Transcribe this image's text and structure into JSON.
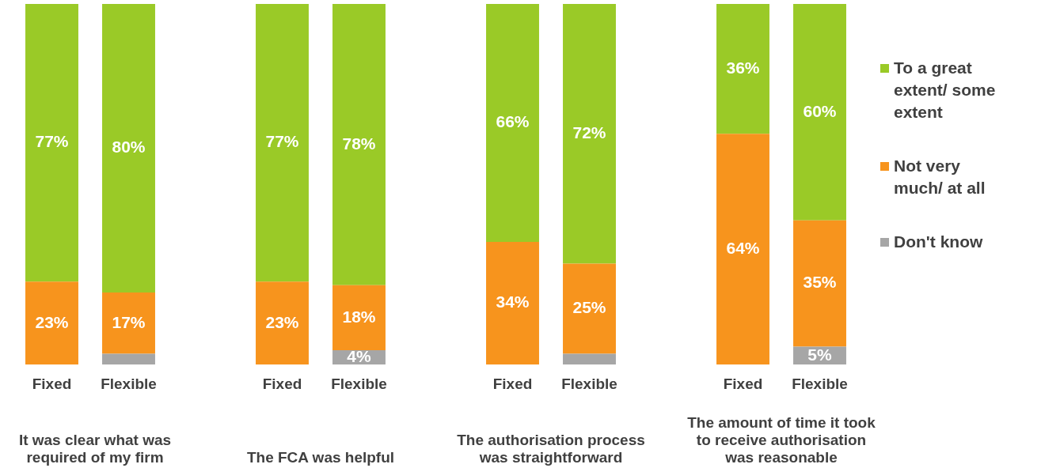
{
  "chart_data": {
    "type": "bar",
    "stacked": true,
    "categories": [
      "Fixed",
      "Flexible",
      null,
      "Fixed",
      "Flexible",
      null,
      "Fixed",
      "Flexible",
      null,
      "Fixed",
      "Flexible"
    ],
    "ylim": [
      0,
      100
    ],
    "tick_labels": "x",
    "grid": false,
    "legend": "right",
    "series": [
      {
        "name": "Don't know",
        "color": "#a6a6a6",
        "values": [
          null,
          3,
          null,
          null,
          4,
          null,
          null,
          3,
          null,
          null,
          5
        ],
        "value_labels": [
          null,
          null,
          null,
          null,
          "4%",
          null,
          null,
          null,
          null,
          null,
          "5%"
        ]
      },
      {
        "name": "Not very much/ at all",
        "color": "#f7941d",
        "values": [
          23,
          17,
          null,
          23,
          18,
          null,
          34,
          25,
          null,
          64,
          35
        ],
        "value_labels": [
          "23%",
          "17%",
          null,
          "23%",
          "18%",
          null,
          "34%",
          "25%",
          null,
          "64%",
          "35%"
        ]
      },
      {
        "name": "To a great extent/ some extent",
        "color": "#9aca27",
        "values": [
          77,
          80,
          null,
          77,
          78,
          null,
          66,
          72,
          null,
          36,
          60
        ],
        "value_labels": [
          "77%",
          "80%",
          null,
          "77%",
          "78%",
          null,
          "66%",
          "72%",
          null,
          "36%",
          "60%"
        ]
      }
    ],
    "annotations": [
      "It was clear what was required of my firm",
      "The FCA was helpful",
      "The authorisation process was straightforward",
      "The amount of time it took to receive authorisation was reasonable"
    ]
  }
}
